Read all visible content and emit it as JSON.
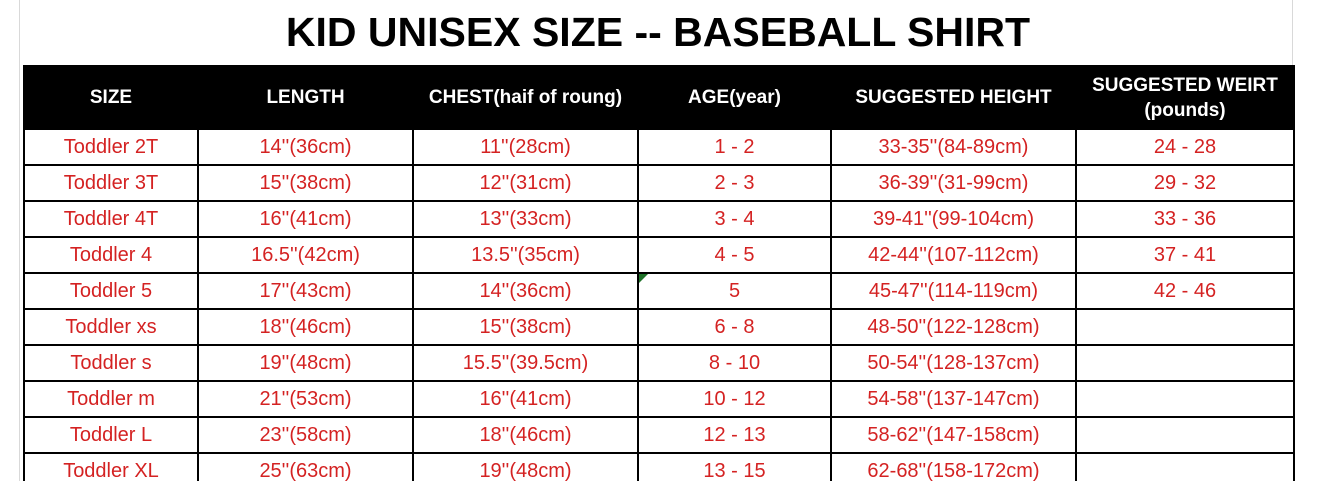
{
  "colors": {
    "data_text": "#d42222",
    "header_bg": "#000000",
    "header_text": "#ffffff",
    "title_text": "#000000",
    "table_border": "#000000",
    "sheet_gridline": "#d9d9d9",
    "error_marker_green": "#1e7128"
  },
  "chart_data": {
    "type": "table",
    "title": "KID UNISEX SIZE -- BASEBALL SHIRT",
    "columns": [
      "SIZE",
      "LENGTH",
      "CHEST(haif of roung)",
      "AGE(year)",
      "SUGGESTED HEIGHT",
      "SUGGESTED WEIRT (pounds)"
    ],
    "rows": [
      [
        "Toddler 2T",
        "14''(36cm)",
        "11''(28cm)",
        "1 - 2",
        "33-35''(84-89cm)",
        "24 - 28"
      ],
      [
        "Toddler 3T",
        "15''(38cm)",
        "12''(31cm)",
        "2 - 3",
        "36-39''(31-99cm)",
        "29 - 32"
      ],
      [
        "Toddler 4T",
        "16''(41cm)",
        "13''(33cm)",
        "3 - 4",
        "39-41''(99-104cm)",
        "33 - 36"
      ],
      [
        "Toddler 4",
        "16.5''(42cm)",
        "13.5''(35cm)",
        "4 - 5",
        "42-44''(107-112cm)",
        "37 - 41"
      ],
      [
        "Toddler 5",
        "17''(43cm)",
        "14''(36cm)",
        "5",
        "45-47''(114-119cm)",
        "42 - 46"
      ],
      [
        "Toddler xs",
        "18''(46cm)",
        "15''(38cm)",
        "6 - 8",
        "48-50''(122-128cm)",
        ""
      ],
      [
        "Toddler s",
        "19''(48cm)",
        "15.5''(39.5cm)",
        "8 - 10",
        "50-54''(128-137cm)",
        ""
      ],
      [
        "Toddler m",
        "21''(53cm)",
        "16''(41cm)",
        "10 - 12",
        "54-58''(137-147cm)",
        ""
      ],
      [
        "Toddler L",
        "23''(58cm)",
        "18''(46cm)",
        "12 - 13",
        "58-62''(147-158cm)",
        ""
      ],
      [
        "Toddler XL",
        "25''(63cm)",
        "19''(48cm)",
        "13 - 15",
        "62-68''(158-172cm)",
        ""
      ]
    ]
  },
  "cell_marker": {
    "row_index": 4,
    "col_index": 3,
    "kind": "green-corner-triangle"
  }
}
